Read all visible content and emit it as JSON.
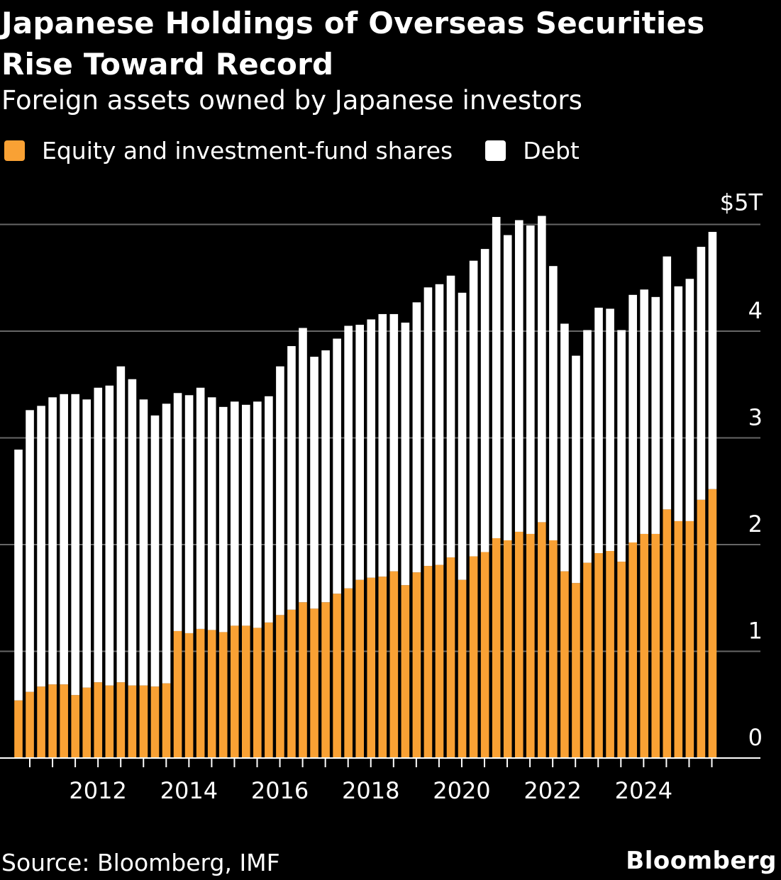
{
  "title": "Japanese Holdings of Overseas Securities Rise Toward Record",
  "subtitle": "Foreign assets owned by Japanese investors",
  "source": "Source: Bloomberg, IMF",
  "brand": "Bloomberg",
  "colors": {
    "equity": "#f9a134",
    "debt": "#ffffff",
    "background": "#000000",
    "grid": "#666666"
  },
  "chart_data": {
    "type": "bar",
    "stacked": true,
    "ylim": [
      0,
      5
    ],
    "y_ticks": [
      {
        "value": 0,
        "label": "0"
      },
      {
        "value": 1,
        "label": "1"
      },
      {
        "value": 2,
        "label": "2"
      },
      {
        "value": 3,
        "label": "3"
      },
      {
        "value": 4,
        "label": "4"
      },
      {
        "value": 5,
        "label": "$5T"
      }
    ],
    "x_labels": [
      "2012",
      "2014",
      "2016",
      "2018",
      "2020",
      "2022",
      "2024"
    ],
    "x_start_year": 2010.5,
    "x_end_year": 2025.5,
    "legend": "top-left",
    "series": [
      {
        "name": "Equity and investment-fund shares",
        "values": [
          0.54,
          0.62,
          0.67,
          0.69,
          0.69,
          0.59,
          0.66,
          0.71,
          0.68,
          0.71,
          0.68,
          0.68,
          0.67,
          0.7,
          1.19,
          1.17,
          1.21,
          1.2,
          1.18,
          1.24,
          1.24,
          1.22,
          1.27,
          1.34,
          1.39,
          1.46,
          1.4,
          1.46,
          1.54,
          1.59,
          1.67,
          1.69,
          1.7,
          1.75,
          1.62,
          1.74,
          1.8,
          1.81,
          1.88,
          1.67,
          1.89,
          1.93,
          2.06,
          2.04,
          2.12,
          2.1,
          2.21,
          2.04,
          1.75,
          1.64,
          1.83,
          1.92,
          1.94,
          1.84,
          2.02,
          2.1,
          2.1,
          2.33,
          2.22,
          2.22,
          2.42,
          2.52
        ]
      },
      {
        "name": "Debt",
        "values": [
          2.35,
          2.64,
          2.63,
          2.69,
          2.72,
          2.82,
          2.7,
          2.76,
          2.81,
          2.96,
          2.87,
          2.68,
          2.54,
          2.62,
          2.23,
          2.23,
          2.26,
          2.18,
          2.11,
          2.1,
          2.07,
          2.12,
          2.12,
          2.33,
          2.47,
          2.57,
          2.36,
          2.36,
          2.39,
          2.46,
          2.39,
          2.42,
          2.46,
          2.41,
          2.46,
          2.53,
          2.61,
          2.63,
          2.64,
          2.69,
          2.77,
          2.84,
          3.01,
          2.86,
          2.92,
          2.89,
          2.87,
          2.57,
          2.32,
          2.13,
          2.18,
          2.3,
          2.27,
          2.17,
          2.32,
          2.29,
          2.22,
          2.37,
          2.2,
          2.27,
          2.37,
          2.41
        ]
      }
    ]
  }
}
